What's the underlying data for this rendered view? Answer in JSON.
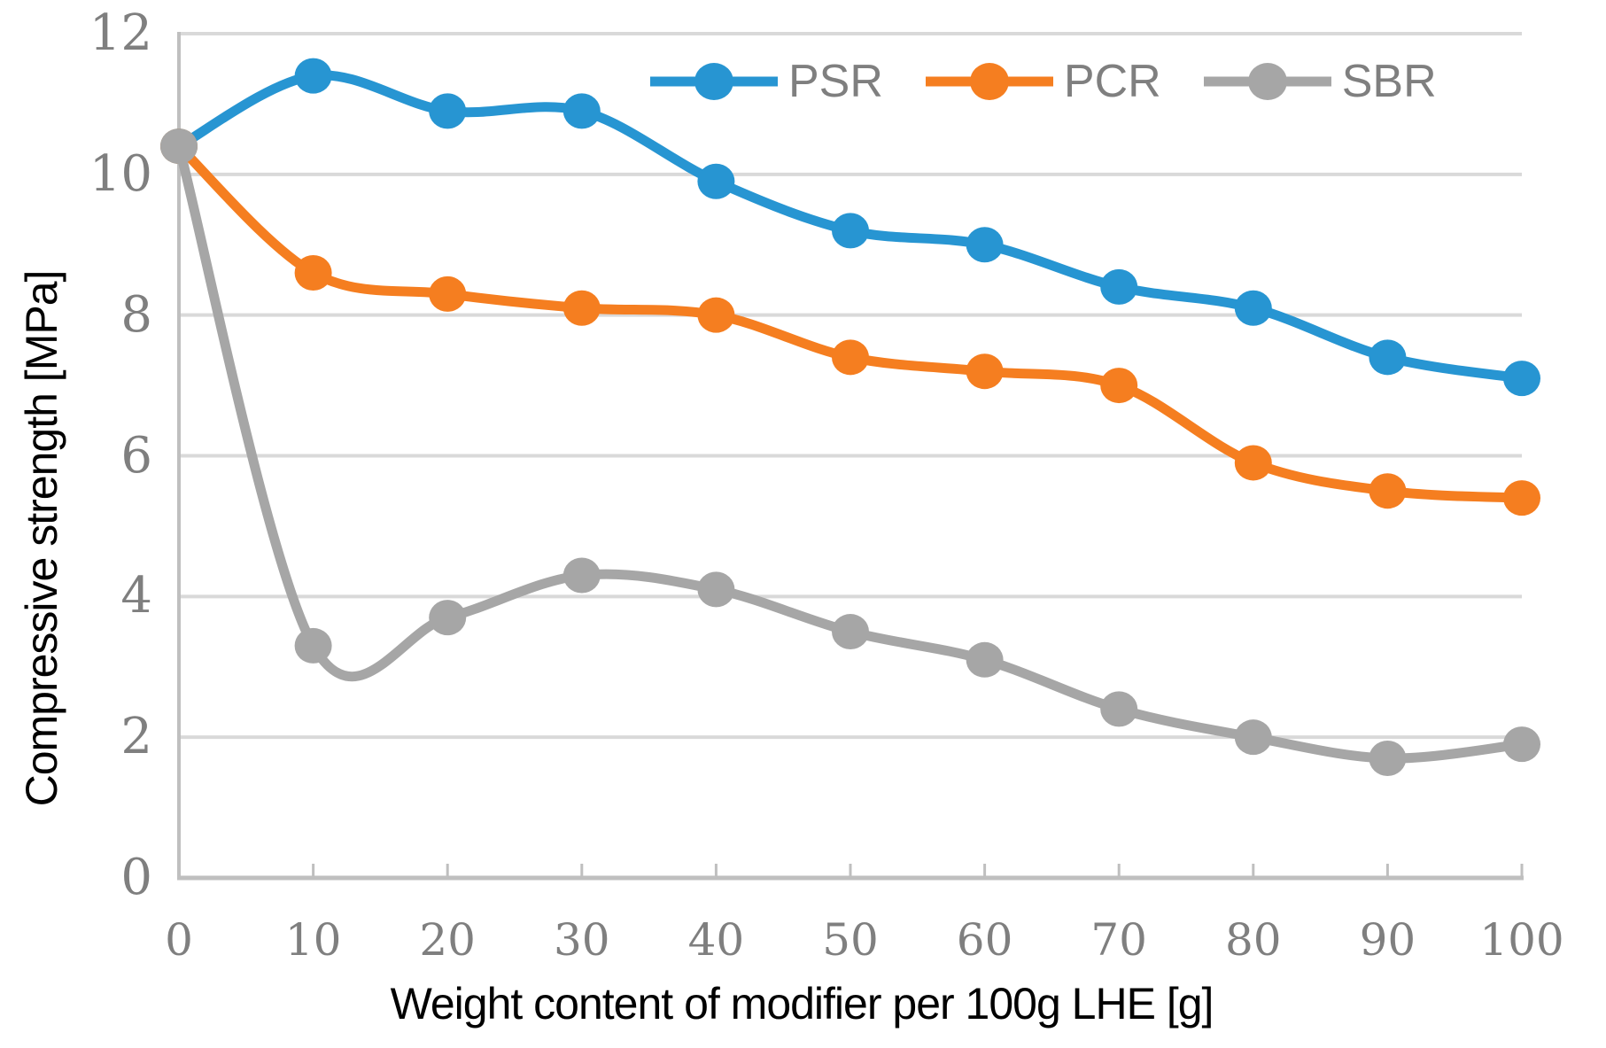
{
  "chart_data": {
    "type": "line",
    "x": [
      0,
      10,
      20,
      30,
      40,
      50,
      60,
      70,
      80,
      90,
      100
    ],
    "series": [
      {
        "name": "PSR",
        "color": "#2795D2",
        "values": [
          10.4,
          11.4,
          10.9,
          10.9,
          9.9,
          9.2,
          9.0,
          8.4,
          8.1,
          7.4,
          7.1
        ]
      },
      {
        "name": "PCR",
        "color": "#F57E20",
        "values": [
          10.4,
          8.6,
          8.3,
          8.1,
          8.0,
          7.4,
          7.2,
          7.0,
          5.9,
          5.5,
          5.4
        ]
      },
      {
        "name": "SBR",
        "color": "#A6A6A6",
        "values": [
          10.4,
          3.3,
          3.7,
          4.3,
          4.1,
          3.5,
          3.1,
          2.4,
          2.0,
          1.7,
          1.9
        ]
      }
    ],
    "title": "",
    "xlabel": "Weight content of modifier per 100g LHE [g]",
    "ylabel": "Compressive strength [MPa]",
    "xlim": [
      0,
      100
    ],
    "ylim": [
      0,
      12
    ],
    "x_ticks": [
      0,
      10,
      20,
      30,
      40,
      50,
      60,
      70,
      80,
      90,
      100
    ],
    "y_ticks": [
      0,
      2,
      4,
      6,
      8,
      10,
      12
    ],
    "grid": "horizontal",
    "smooth_lines": true,
    "legend_position": "top"
  },
  "colors": {
    "background": "#FFFFFF",
    "gridline": "#D9D9D9",
    "axis_line": "#BFBFBF",
    "tick_label": "#7F7F7F",
    "legend_text": "#7F7F7F",
    "axis_title_text": "#000000"
  }
}
